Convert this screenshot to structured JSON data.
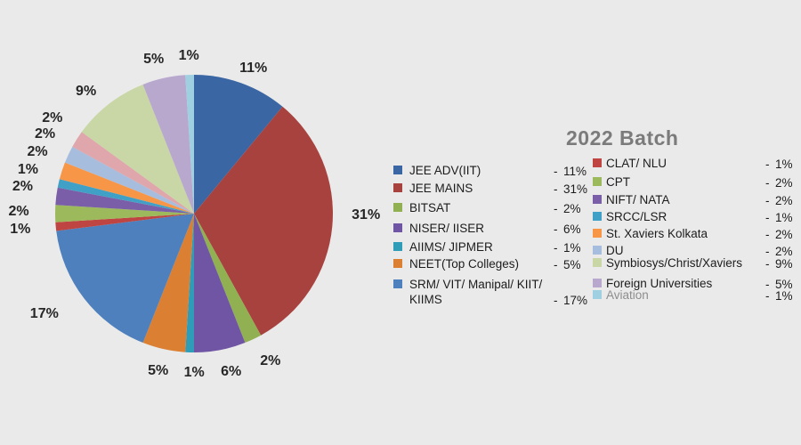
{
  "title": "2022 Batch",
  "title_color": "#7B7B7B",
  "background_color": "#EAEAEA",
  "legend": {
    "separator": "-",
    "left_indices": [
      0,
      1,
      2,
      3,
      4,
      5,
      6
    ],
    "right_indices": [
      7,
      8,
      9,
      10,
      11,
      12,
      14,
      15,
      16
    ]
  },
  "chart_data": {
    "type": "pie",
    "title": "2022 Batch",
    "direction": "clockwise",
    "start_angle_deg": 0,
    "legend_position": "right",
    "slices": [
      {
        "label": "JEE ADV(IIT)",
        "value": 11,
        "display": "11%",
        "color": "#3B66A4"
      },
      {
        "label": "JEE MAINS",
        "value": 31,
        "display": "31%",
        "color": "#A8423F"
      },
      {
        "label": "BITSAT",
        "value": 2,
        "display": "2%",
        "color": "#90B052"
      },
      {
        "label": "NISER/ IISER",
        "value": 6,
        "display": "6%",
        "color": "#6F55A4"
      },
      {
        "label": "AIIMS/ JIPMER",
        "value": 1,
        "display": "1%",
        "color": "#2F9DB8"
      },
      {
        "label": "NEET(Top Colleges)",
        "value": 5,
        "display": "5%",
        "color": "#DB7F33"
      },
      {
        "label": "SRM/ VIT/ Manipal/ KIIT/ KIIMS",
        "value": 17,
        "display": "17%",
        "color": "#4D80BD"
      },
      {
        "label": "CLAT/ NLU",
        "value": 1,
        "display": "1%",
        "color": "#BF4542"
      },
      {
        "label": "CPT",
        "value": 2,
        "display": "2%",
        "color": "#9CBA5C"
      },
      {
        "label": "NIFT/ NATA",
        "value": 2,
        "display": "2%",
        "color": "#7A5EA8"
      },
      {
        "label": "SRCC/LSR",
        "value": 1,
        "display": "1%",
        "color": "#41A0C6"
      },
      {
        "label": "St. Xaviers Kolkata",
        "value": 2,
        "display": "2%",
        "color": "#F79646"
      },
      {
        "label": "DU",
        "value": 2,
        "display": "2%",
        "color": "#A7BDDE"
      },
      {
        "label": "",
        "value": 2,
        "display": "2%",
        "color": "#DFA6AB"
      },
      {
        "label": "Symbiosys/Christ/Xaviers",
        "value": 9,
        "display": "9%",
        "color": "#C8D7A5"
      },
      {
        "label": "Foreign Universities",
        "value": 5,
        "display": "5%",
        "color": "#B9A8CE"
      },
      {
        "label": "Aviation",
        "value": 1,
        "display": "1%",
        "color": "#9FD0E2",
        "muted": true
      }
    ]
  }
}
